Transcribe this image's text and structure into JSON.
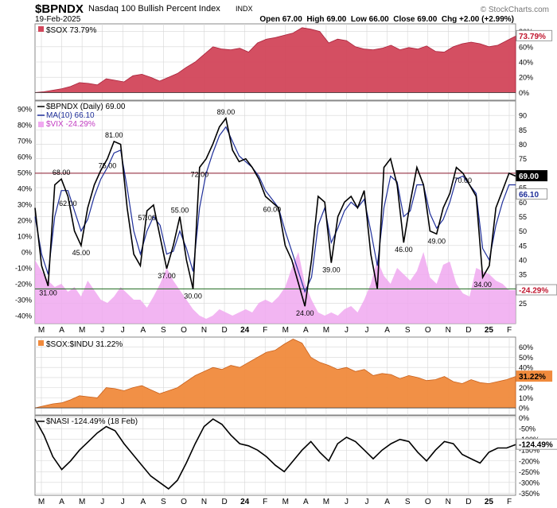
{
  "header": {
    "symbol": "$BPNDX",
    "name": "Nasdaq 100 Bullish Percent Index",
    "exchange": "INDX",
    "date": "19-Feb-2025",
    "ohlc": "Open 67.00  High 69.00  Low 66.00  Close 69.00  Chg +2.00 (+2.99%)",
    "attribution": "© StockCharts.com"
  },
  "colors": {
    "sox": "#d2465a",
    "bpndx": "#000000",
    "ma": "#1f2f9a",
    "vix": "#f0a8f0",
    "ratio": "#f08a3c",
    "nasi": "#000000",
    "overbought": "#8b1a2e",
    "oversold": "#1f6b1f",
    "grid": "#d6d6d6"
  },
  "x_axis": {
    "months": [
      "M",
      "A",
      "M",
      "J",
      "J",
      "A",
      "S",
      "O",
      "N",
      "D",
      "24",
      "F",
      "M",
      "A",
      "M",
      "J",
      "J",
      "A",
      "S",
      "O",
      "N",
      "D",
      "25",
      "F"
    ]
  },
  "chart_data": [
    {
      "type": "area",
      "panel": "sox",
      "legend": "$SOX 73.79%",
      "last_label": "73.79%",
      "ylim": [
        -10,
        90
      ],
      "yticks": [
        "80%",
        "60%",
        "40%",
        "20%",
        "0%"
      ],
      "series": [
        {
          "name": "$SOX",
          "values": [
            0,
            1,
            3,
            5,
            8,
            13,
            12,
            10,
            18,
            16,
            14,
            22,
            24,
            20,
            15,
            20,
            25,
            33,
            40,
            50,
            60,
            57,
            56,
            58,
            53,
            65,
            70,
            72,
            75,
            78,
            85,
            83,
            80,
            65,
            70,
            68,
            60,
            57,
            56,
            58,
            62,
            56,
            59,
            57,
            61,
            54,
            53,
            60,
            64,
            66,
            64,
            60,
            62,
            68,
            74
          ]
        }
      ]
    },
    {
      "type": "line",
      "panel": "bpndx",
      "legend": [
        "$BPNDX (Daily) 69.00",
        "MA(10) 66.10",
        "$VIX -24.29%"
      ],
      "last_labels": [
        "69.00",
        "66.10",
        "-24.29%"
      ],
      "overbought": 70,
      "oversold": 30,
      "ylim_bpndx": [
        18,
        95
      ],
      "yticks_bpndx": [
        "90",
        "85",
        "80",
        "75",
        "70",
        "65",
        "60",
        "55",
        "50",
        "45",
        "40",
        "35",
        "30",
        "25"
      ],
      "yticks_vix": [
        "90%",
        "80%",
        "70%",
        "60%",
        "50%",
        "40%",
        "30%",
        "20%",
        "10%",
        "0%",
        "-10%",
        "-20%",
        "-30%",
        "-40%"
      ],
      "annotations": [
        "31.00",
        "68.00",
        "45.00",
        "81.00",
        "57.00",
        "37.00",
        "55.00",
        "89.00",
        "60.00",
        "24.00",
        "39.00",
        "62.00",
        "75.00",
        "30.00",
        "46.00",
        "49.00",
        "72.00",
        "34.00",
        "70.00"
      ],
      "series": [
        {
          "name": "$BPNDX",
          "values": [
            58,
            38,
            31,
            66,
            68,
            62,
            50,
            45,
            58,
            66,
            71,
            75,
            81,
            80,
            58,
            42,
            38,
            57,
            59,
            48,
            37,
            45,
            55,
            40,
            30,
            72,
            75,
            80,
            86,
            89,
            78,
            74,
            75,
            72,
            68,
            62,
            60,
            58,
            45,
            40,
            32,
            24,
            40,
            62,
            60,
            39,
            55,
            60,
            62,
            58,
            64,
            42,
            30,
            72,
            75,
            66,
            46,
            60,
            72,
            66,
            50,
            49,
            58,
            63,
            72,
            70,
            66,
            62,
            34,
            38,
            58,
            64,
            70,
            69
          ]
        },
        {
          "name": "MA(10)",
          "values": [
            55,
            42,
            35,
            55,
            64,
            64,
            57,
            50,
            54,
            62,
            68,
            72,
            77,
            78,
            65,
            50,
            42,
            50,
            55,
            52,
            42,
            43,
            50,
            44,
            36,
            58,
            70,
            77,
            83,
            86,
            81,
            76,
            74,
            72,
            69,
            64,
            61,
            58,
            50,
            43,
            36,
            29,
            34,
            52,
            58,
            46,
            51,
            57,
            60,
            58,
            61,
            50,
            38,
            58,
            69,
            67,
            55,
            57,
            66,
            66,
            56,
            51,
            54,
            60,
            68,
            69,
            66,
            63,
            44,
            40,
            52,
            60,
            66,
            66
          ]
        },
        {
          "name": "$VIX",
          "values": [
            -5,
            -12,
            -18,
            -22,
            -20,
            -25,
            -22,
            -28,
            -18,
            -24,
            -30,
            -32,
            -28,
            -22,
            -26,
            -30,
            -30,
            -35,
            -28,
            -20,
            -10,
            -18,
            -24,
            -30,
            -36,
            -40,
            -42,
            -40,
            -36,
            -38,
            -40,
            -38,
            -36,
            -38,
            -32,
            -30,
            -32,
            -28,
            -22,
            -10,
            0,
            -20,
            -30,
            -38,
            -40,
            -38,
            -40,
            -36,
            -34,
            -38,
            -30,
            -20,
            -5,
            -15,
            -20,
            -10,
            -14,
            -18,
            -12,
            0,
            -16,
            -20,
            -8,
            -6,
            -20,
            -26,
            -28,
            -10,
            -12,
            -14,
            -18,
            -20,
            -24,
            -24
          ]
        }
      ]
    },
    {
      "type": "area",
      "panel": "ratio",
      "legend": "$SOX:$INDU 31.22%",
      "last_label": "31.22%",
      "ylim": [
        -7,
        70
      ],
      "yticks": [
        "60%",
        "50%",
        "40%",
        "30%",
        "20%",
        "10%",
        "0%"
      ],
      "series": [
        {
          "name": "$SOX:$INDU",
          "values": [
            0,
            2,
            4,
            5,
            8,
            12,
            11,
            10,
            20,
            19,
            17,
            20,
            22,
            18,
            14,
            17,
            20,
            26,
            32,
            36,
            40,
            38,
            42,
            40,
            45,
            50,
            55,
            57,
            63,
            68,
            64,
            50,
            45,
            42,
            38,
            40,
            36,
            38,
            32,
            34,
            33,
            29,
            32,
            30,
            27,
            28,
            31,
            26,
            24,
            28,
            25,
            24,
            26,
            28,
            31
          ]
        }
      ]
    },
    {
      "type": "line",
      "panel": "nasi",
      "legend": "$NASI -124.49% (18 Feb)",
      "last_label": "-124.49%",
      "ylim": [
        -360,
        10
      ],
      "yticks": [
        "0%",
        "-50%",
        "-100%",
        "-150%",
        "-200%",
        "-250%",
        "-300%",
        "-350%"
      ],
      "series": [
        {
          "name": "$NASI",
          "values": [
            -5,
            -80,
            -180,
            -240,
            -200,
            -150,
            -110,
            -70,
            -40,
            -60,
            -120,
            -170,
            -220,
            -270,
            -300,
            -330,
            -290,
            -210,
            -120,
            -40,
            -5,
            -30,
            -80,
            -120,
            -130,
            -150,
            -180,
            -220,
            -250,
            -200,
            -150,
            -110,
            -160,
            -200,
            -120,
            -90,
            -110,
            -150,
            -190,
            -150,
            -120,
            -100,
            -110,
            -160,
            -200,
            -150,
            -110,
            -120,
            -170,
            -190,
            -210,
            -160,
            -140,
            -140,
            -124
          ]
        }
      ]
    }
  ]
}
